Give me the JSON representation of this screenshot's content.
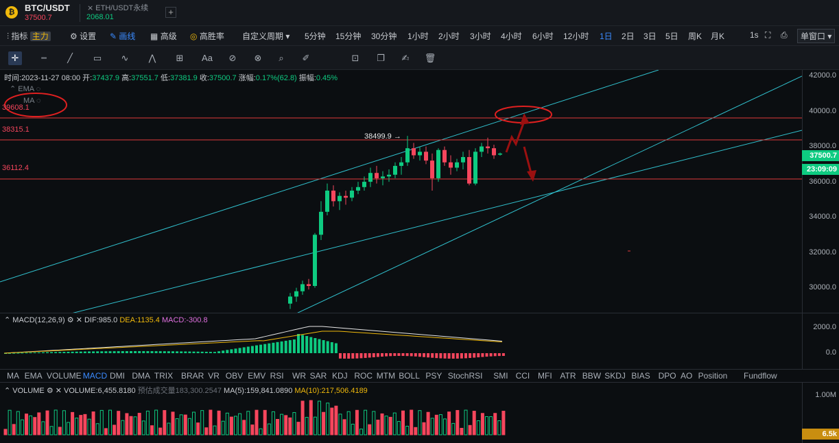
{
  "header": {
    "logo": "₿",
    "symbol": "BTC/USDT",
    "symbol_price": "37500.7",
    "tab2_name": "ETH/USDT永续",
    "tab2_price": "2068.01",
    "add": "+"
  },
  "toolbar": {
    "indicators": "指标",
    "indicators_badge": "主力",
    "settings": "设置",
    "draw": "画线",
    "advanced": "高级",
    "winrate": "高胜率",
    "custom": "自定义周期",
    "timeframes": [
      "5分钟",
      "15分钟",
      "30分钟",
      "1小时",
      "2小时",
      "3小时",
      "4小时",
      "6小时",
      "12小时",
      "1日",
      "2日",
      "3日",
      "5日",
      "周K",
      "月K"
    ],
    "active_timeframe": "1日",
    "interval": "1s",
    "window": "单窗口"
  },
  "chart": {
    "info": {
      "time_label": "时间:",
      "time": "2023-11-27 08:00",
      "open_label": "开:",
      "open": "37437.9",
      "high_label": "高:",
      "high": "37551.7",
      "low_label": "低:",
      "low": "37381.9",
      "close_label": "收:",
      "close": "37500.7",
      "change_label": "涨幅:",
      "change": "0.17%(62.8)",
      "amp_label": "振幅:",
      "amp": "0.45%"
    },
    "legend": {
      "ema": "EMA",
      "ma": "MA"
    },
    "axis_labels": [
      "42000.0",
      "40000.0",
      "38000.0",
      "36000.0",
      "34000.0",
      "32000.0",
      "30000.0"
    ],
    "levels": [
      "39608.1",
      "38315.1",
      "36112.4"
    ],
    "max_label": "38499.9 →",
    "price_tag": "37500.7",
    "countdown": "23:09:09",
    "colors": {
      "up": "#0ecb81",
      "down": "#f6465d",
      "channel": "#31c3d0",
      "level": "#e03a3a"
    }
  },
  "macd": {
    "title": "MACD(12,26,9)",
    "dif_label": "DIF:",
    "dif": "985.0",
    "dea_label": "DEA:",
    "dea": "1135.4",
    "macd_label": "MACD:",
    "macd": "-300.8",
    "axis": [
      "2000.0",
      "0.0"
    ]
  },
  "indicators": [
    "MA",
    "EMA",
    "VOLUME",
    "MACD",
    "DMI",
    "DMA",
    "TRIX",
    "BRAR",
    "VR",
    "OBV",
    "EMV",
    "RSI",
    "WR",
    "SAR",
    "KDJ",
    "ROC",
    "MTM",
    "BOLL",
    "PSY",
    "StochRSI",
    "SMI",
    "CCI",
    "MFI",
    "ATR",
    "BBW",
    "SKDJ",
    "BIAS",
    "DPO",
    "AO",
    "Position",
    "Fundflow"
  ],
  "active_indicator": "MACD",
  "volume": {
    "title": "VOLUME",
    "value_label": "VOLUME:",
    "value": "6,455.8180",
    "est_label": "预估成交量",
    "est": "183,300.2547",
    "ma5_label": "MA(5):",
    "ma5": "159,841.0890",
    "ma10_label": "MA(10):",
    "ma10": "217,506.4189",
    "axis": "1.00M",
    "tag": "6.5k"
  }
}
